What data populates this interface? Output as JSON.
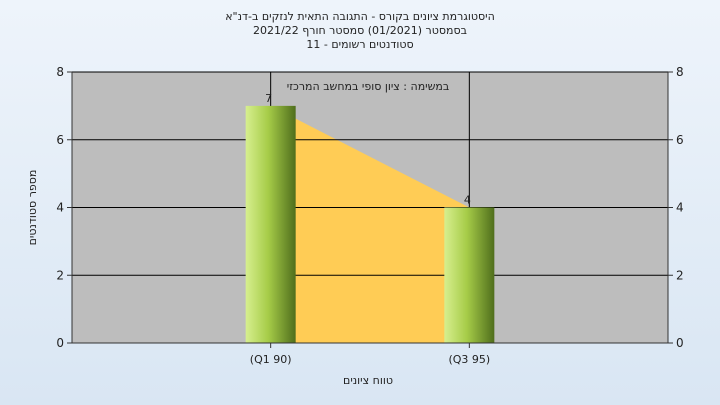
{
  "chart_data": {
    "type": "bar",
    "title_lines": [
      "היסטוגרמת ציונים בקורס - התגובה התאית לנזקים ב-דנ\"א",
      "בסמסטר  (01/2021)  סמסטר חורף 2021/22",
      "סטודנטים רשומים - 11"
    ],
    "annotation": "במשימה : ציון סופי במחשב המרכזי",
    "categories": [
      "(Q1 90)",
      "(Q3 95)"
    ],
    "values": [
      7,
      4
    ],
    "data_labels": [
      "7",
      "4"
    ],
    "xlabel": "טווח ציונים",
    "ylabel": "מספר סטודנטים",
    "ylim": [
      0,
      8
    ],
    "yticks": [
      0,
      2,
      4,
      6,
      8
    ],
    "ytick_labels": [
      "0",
      "2",
      "4",
      "6",
      "8"
    ],
    "grid": true,
    "colors": {
      "plot_bg": "#bdbdbd",
      "area_fill": "#ffcc55",
      "bar_light": "#d7ef8f",
      "bar_dark": "#4f6e1c",
      "grid": "#000000"
    }
  }
}
